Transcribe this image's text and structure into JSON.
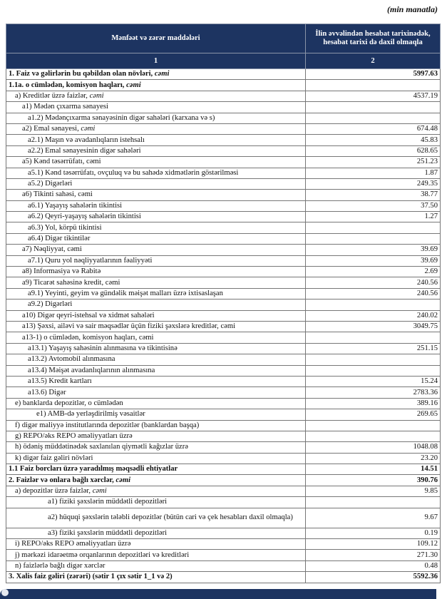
{
  "unit_note": "(min manatla)",
  "header": {
    "col1": "Mənfəət və zərər maddələri",
    "col2": "İlin əvvəlindən hesabat tarixinədək, hesabat tarixi də daxil olmaqla",
    "num1": "1",
    "num2": "2"
  },
  "colors": {
    "header_bg": "#1d3461"
  },
  "rows": [
    {
      "label": "1. Faiz və gəlirlərin bu qəbildən olan növləri, ",
      "em": "cəmi",
      "value": "5997.63",
      "bold": true,
      "indent": 0
    },
    {
      "label": "1.1a. o cümlədən, komisyon haqları, ",
      "em": "cəmi",
      "value": "",
      "bold": true,
      "indent": 0
    },
    {
      "label": "a) Kreditlər üzrə faizlər, ",
      "em": "cəmi",
      "value": "4537.19",
      "indent": 1
    },
    {
      "label": "a1) Mədən çıxarma sənayesi",
      "value": "",
      "indent": 2
    },
    {
      "label": "a1.2) Mədənçıxarma sənayəsinin digər sahələri (karxana və s)",
      "value": "",
      "indent": 3
    },
    {
      "label": "a2) Emal sənayesi, ",
      "em": "cəmi",
      "value": "674.48",
      "indent": 2
    },
    {
      "label": "a2.1) Maşın və avadanlıqların istehsalı",
      "value": "45.83",
      "indent": 3
    },
    {
      "label": "a2.2) Emal sənayesinin digər sahələri",
      "value": "628.65",
      "indent": 3
    },
    {
      "label": "a5) Kənd təsərrüfatı, cəmi",
      "value": "251.23",
      "indent": 2
    },
    {
      "label": "a5.1) Kənd təsərrüfatı, ovçuluq və bu sahədə xidmətlərin göstərilməsi",
      "value": "1.87",
      "indent": 3
    },
    {
      "label": "a5.2) Digərləri",
      "value": "249.35",
      "indent": 3
    },
    {
      "label": "a6) Tikinti sahəsi, cəmi",
      "value": "38.77",
      "indent": 2
    },
    {
      "label": "a6.1) Yaşayış sahələrin tikintisi",
      "value": "37.50",
      "indent": 3
    },
    {
      "label": "a6.2) Qeyri-yaşayış sahələrin tikintisi",
      "value": "1.27",
      "indent": 3
    },
    {
      "label": "a6.3) Yol, körpü tikintisi",
      "value": "",
      "indent": 3
    },
    {
      "label": "a6.4) Digər tikintilər",
      "value": "",
      "indent": 3
    },
    {
      "label": "a7) Nəqliyyat, cəmi",
      "value": "39.69",
      "indent": 2
    },
    {
      "label": "a7.1) Quru yol nəqliyyatlarının fəaliyyəti",
      "value": "39.69",
      "indent": 3
    },
    {
      "label": "a8)  Informasiya və Rabitə",
      "value": "2.69",
      "indent": 2
    },
    {
      "label": "a9) Ticarət sahəsinə kredit, cəmi",
      "value": "240.56",
      "indent": 2
    },
    {
      "label": "a9.1) Yeyinti, geyim və gündəlik məişət malları üzrə ixtisaslaşan",
      "value": "240.56",
      "indent": 3
    },
    {
      "label": "a9.2) Digərləri",
      "value": "",
      "indent": 3
    },
    {
      "label": "a10) Digər qeyri-istehsal və xidmət sahələri",
      "value": "240.02",
      "indent": 2
    },
    {
      "label": "a13) Şəxsi, ailəvi və sair məqsədlər üçün fiziki şəxslərə kreditlər, cəmi",
      "value": "3049.75",
      "indent": 2
    },
    {
      "label": "a13-1) o cümlədən, komisyon haqları, cəmi",
      "value": "",
      "indent": 2
    },
    {
      "label": "a13.1) Yaşayış sahəsinin alınmasına və tikintisinə",
      "value": "251.15",
      "indent": 3
    },
    {
      "label": "a13.2) Avtomobil alınmasına",
      "value": "",
      "indent": 3
    },
    {
      "label": "a13.4) Məişət avadanlıqlarının alınmasına",
      "value": "",
      "indent": 3
    },
    {
      "label": "a13.5) Kredit kartları",
      "value": "15.24",
      "indent": 3
    },
    {
      "label": "a13.6) Digər",
      "value": "2783.36",
      "indent": 3
    },
    {
      "label": "e) banklarda depozitlər, o cümlədən",
      "value": "389.16",
      "indent": 1
    },
    {
      "label": "e1)  AMB-də yerləşdirilmiş vəsaitlər",
      "value": "269.65",
      "indent": 4
    },
    {
      "label": "f) digər maliyyə institutlarında depozitlər (banklardan başqa)",
      "value": "",
      "indent": 1
    },
    {
      "label": "g) REPO/əks REPO əməliyyatları üzrə",
      "value": "",
      "indent": 1
    },
    {
      "label": "h) ödəniş müddətinədək saxlanılan qiymətli kağızlar üzrə",
      "value": "1048.08",
      "indent": 1
    },
    {
      "label": "k) digər faiz gəliri növləri",
      "value": "23.20",
      "indent": 1
    },
    {
      "label": "1.1 Faiz borcları üzrə yaradılmış məqsədli ehtiyatlar",
      "value": "14.51",
      "bold": true,
      "indent": 0
    },
    {
      "label": "2. Faizlər və onlara bağlı xərclər, ",
      "em": "cəmi",
      "value": "390.76",
      "bold": true,
      "indent": 0
    },
    {
      "label": "a) depozitlər üzrə faizlər, ",
      "em": "cəmi",
      "value": "9.85",
      "indent": 1
    },
    {
      "label": "a1) fiziki şəxslərin müddətli depozitləri",
      "value": "",
      "indent": 5
    },
    {
      "label": "a2) hüquqi şəxslərin tələbli depozitlər (bütün cari və çek hesabları daxil olmaqla)",
      "value": "9.67",
      "indent": 5,
      "wrap": true
    },
    {
      "label": "a3) fiziki şəxslərin müddətli depozitləri",
      "value": "0.19",
      "indent": 5
    },
    {
      "label": "i) REPO/əks REPO əməliyyatları üzrə",
      "value": "109.12",
      "indent": 1
    },
    {
      "label": "j) mərkəzi idarəetmə orqanlarının depozitləri və kreditləri",
      "value": "271.30",
      "indent": 1
    },
    {
      "label": "n) faizlərlə bağlı digər xərclər",
      "value": "0.48",
      "indent": 1
    },
    {
      "label": "3. Xalis faiz gəliri (zərəri) (sətir 1 çıx sətir 1_1 və 2)",
      "value": "5592.36",
      "bold": true,
      "indent": 0
    }
  ]
}
